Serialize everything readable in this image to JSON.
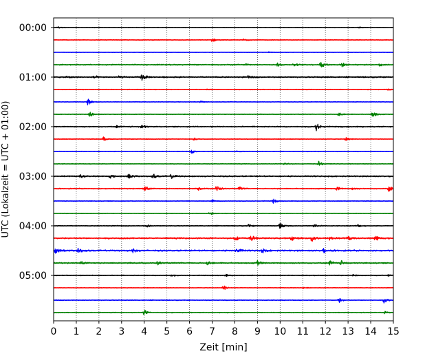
{
  "chart_data": {
    "type": "line",
    "title": "",
    "xlabel": "Zeit  [min]",
    "ylabel": "UTC (Lokalzeit = UTC + 01:00)",
    "xlim": [
      0,
      15
    ],
    "x_ticks": [
      0,
      1,
      2,
      3,
      4,
      5,
      6,
      7,
      8,
      9,
      10,
      11,
      12,
      13,
      14,
      15
    ],
    "x_tick_labels": [
      "0",
      "1",
      "2",
      "3",
      "4",
      "5",
      "6",
      "7",
      "8",
      "9",
      "10",
      "11",
      "12",
      "13",
      "14",
      "15"
    ],
    "grid": "vertical dotted",
    "trace_colors": [
      "#000000",
      "#ff0000",
      "#0000ff",
      "#008000"
    ],
    "y_tick_labels": [
      "00:00",
      "01:00",
      "02:00",
      "03:00",
      "04:00",
      "05:00"
    ],
    "y_tick_trace_index": [
      0,
      4,
      8,
      12,
      16,
      20
    ],
    "trace_count": 24,
    "trace_interval_minutes": 15,
    "traces": [
      {
        "start": "00:00",
        "color": "#000000",
        "noise": 0.35,
        "events": [
          {
            "t": 0.2,
            "a": 1.5
          },
          {
            "t": 13.5,
            "a": 0.8
          }
        ]
      },
      {
        "start": "00:15",
        "color": "#ff0000",
        "noise": 0.45,
        "events": [
          {
            "t": 7.0,
            "a": 3.0
          },
          {
            "t": 8.4,
            "a": 2.0
          }
        ]
      },
      {
        "start": "00:30",
        "color": "#0000ff",
        "noise": 0.3,
        "events": [
          {
            "t": 9.5,
            "a": 1.0
          }
        ]
      },
      {
        "start": "00:45",
        "color": "#008000",
        "noise": 0.7,
        "events": [
          {
            "t": 8.5,
            "a": 2.0
          },
          {
            "t": 9.9,
            "a": 2.8
          },
          {
            "t": 10.6,
            "a": 2.2
          },
          {
            "t": 11.8,
            "a": 4.5
          },
          {
            "t": 12.7,
            "a": 3.5
          },
          {
            "t": 14.4,
            "a": 2.8
          }
        ]
      },
      {
        "start": "01:00",
        "color": "#000000",
        "noise": 0.8,
        "events": [
          {
            "t": 0.6,
            "a": 1.8
          },
          {
            "t": 1.8,
            "a": 2.0
          },
          {
            "t": 2.9,
            "a": 2.0
          },
          {
            "t": 3.9,
            "a": 5.5
          },
          {
            "t": 8.6,
            "a": 1.8
          }
        ]
      },
      {
        "start": "01:15",
        "color": "#ff0000",
        "noise": 0.45,
        "events": [
          {
            "t": 6.8,
            "a": 1.0
          },
          {
            "t": 14.8,
            "a": 1.2
          }
        ]
      },
      {
        "start": "01:30",
        "color": "#0000ff",
        "noise": 0.4,
        "events": [
          {
            "t": 1.5,
            "a": 5.0
          },
          {
            "t": 6.5,
            "a": 1.2
          }
        ]
      },
      {
        "start": "01:45",
        "color": "#008000",
        "noise": 0.45,
        "events": [
          {
            "t": 1.6,
            "a": 4.0
          },
          {
            "t": 12.6,
            "a": 2.5
          },
          {
            "t": 14.1,
            "a": 4.5
          }
        ]
      },
      {
        "start": "02:00",
        "color": "#000000",
        "noise": 0.7,
        "events": [
          {
            "t": 2.8,
            "a": 1.5
          },
          {
            "t": 3.9,
            "a": 3.5
          },
          {
            "t": 11.6,
            "a": 5.5
          }
        ]
      },
      {
        "start": "02:15",
        "color": "#ff0000",
        "noise": 0.45,
        "events": [
          {
            "t": 2.2,
            "a": 3.0
          },
          {
            "t": 6.2,
            "a": 2.0
          },
          {
            "t": 12.9,
            "a": 3.0
          }
        ]
      },
      {
        "start": "02:30",
        "color": "#0000ff",
        "noise": 0.4,
        "events": [
          {
            "t": 6.1,
            "a": 2.5
          },
          {
            "t": 8.1,
            "a": 1.0
          }
        ]
      },
      {
        "start": "02:45",
        "color": "#008000",
        "noise": 0.45,
        "events": [
          {
            "t": 10.2,
            "a": 2.0
          },
          {
            "t": 11.7,
            "a": 3.5
          }
        ]
      },
      {
        "start": "03:00",
        "color": "#000000",
        "noise": 0.8,
        "events": [
          {
            "t": 1.2,
            "a": 2.5
          },
          {
            "t": 2.5,
            "a": 2.5
          },
          {
            "t": 3.3,
            "a": 3.0
          },
          {
            "t": 4.4,
            "a": 3.0
          },
          {
            "t": 5.2,
            "a": 3.0
          }
        ]
      },
      {
        "start": "03:15",
        "color": "#ff0000",
        "noise": 0.6,
        "events": [
          {
            "t": 4.0,
            "a": 5.5
          },
          {
            "t": 6.4,
            "a": 2.0
          },
          {
            "t": 7.2,
            "a": 5.0
          },
          {
            "t": 8.2,
            "a": 2.5
          },
          {
            "t": 12.5,
            "a": 3.0
          },
          {
            "t": 13.2,
            "a": 2.5
          },
          {
            "t": 14.8,
            "a": 4.5
          }
        ]
      },
      {
        "start": "03:30",
        "color": "#0000ff",
        "noise": 0.45,
        "events": [
          {
            "t": 7.0,
            "a": 2.0
          },
          {
            "t": 9.7,
            "a": 3.0
          }
        ]
      },
      {
        "start": "03:45",
        "color": "#008000",
        "noise": 0.4,
        "events": [
          {
            "t": 6.9,
            "a": 2.0
          }
        ]
      },
      {
        "start": "04:00",
        "color": "#000000",
        "noise": 0.55,
        "events": [
          {
            "t": 4.1,
            "a": 2.0
          },
          {
            "t": 8.6,
            "a": 2.0
          },
          {
            "t": 10.0,
            "a": 5.0
          },
          {
            "t": 11.5,
            "a": 2.5
          },
          {
            "t": 13.4,
            "a": 2.5
          }
        ]
      },
      {
        "start": "04:15",
        "color": "#ff0000",
        "noise": 0.9,
        "events": [
          {
            "t": 8.0,
            "a": 3.5
          },
          {
            "t": 8.7,
            "a": 5.0
          },
          {
            "t": 10.5,
            "a": 3.0
          },
          {
            "t": 11.4,
            "a": 6.0
          },
          {
            "t": 12.2,
            "a": 3.5
          },
          {
            "t": 13.0,
            "a": 3.0
          },
          {
            "t": 14.2,
            "a": 5.0
          }
        ]
      },
      {
        "start": "04:30",
        "color": "#0000ff",
        "noise": 0.9,
        "events": [
          {
            "t": 0.1,
            "a": 4.5
          },
          {
            "t": 1.1,
            "a": 4.0
          },
          {
            "t": 3.5,
            "a": 3.5
          },
          {
            "t": 8.1,
            "a": 4.0
          },
          {
            "t": 9.2,
            "a": 3.5
          },
          {
            "t": 11.9,
            "a": 3.0
          }
        ]
      },
      {
        "start": "04:45",
        "color": "#008000",
        "noise": 0.75,
        "events": [
          {
            "t": 1.2,
            "a": 2.5
          },
          {
            "t": 4.6,
            "a": 2.5
          },
          {
            "t": 6.8,
            "a": 2.5
          },
          {
            "t": 9.0,
            "a": 3.5
          },
          {
            "t": 12.2,
            "a": 3.5
          },
          {
            "t": 12.7,
            "a": 3.0
          }
        ]
      },
      {
        "start": "05:00",
        "color": "#000000",
        "noise": 0.5,
        "events": [
          {
            "t": 5.2,
            "a": 1.5
          },
          {
            "t": 7.6,
            "a": 1.5
          },
          {
            "t": 13.2,
            "a": 1.5
          },
          {
            "t": 14.8,
            "a": 1.5
          }
        ]
      },
      {
        "start": "05:15",
        "color": "#ff0000",
        "noise": 0.45,
        "events": [
          {
            "t": 7.5,
            "a": 4.0
          },
          {
            "t": 11.0,
            "a": 1.2
          }
        ]
      },
      {
        "start": "05:30",
        "color": "#0000ff",
        "noise": 0.55,
        "events": [
          {
            "t": 12.6,
            "a": 3.5
          },
          {
            "t": 14.6,
            "a": 4.5
          }
        ]
      },
      {
        "start": "05:45",
        "color": "#008000",
        "noise": 0.5,
        "events": [
          {
            "t": 4.0,
            "a": 4.0
          },
          {
            "t": 14.6,
            "a": 2.0
          }
        ]
      }
    ]
  }
}
